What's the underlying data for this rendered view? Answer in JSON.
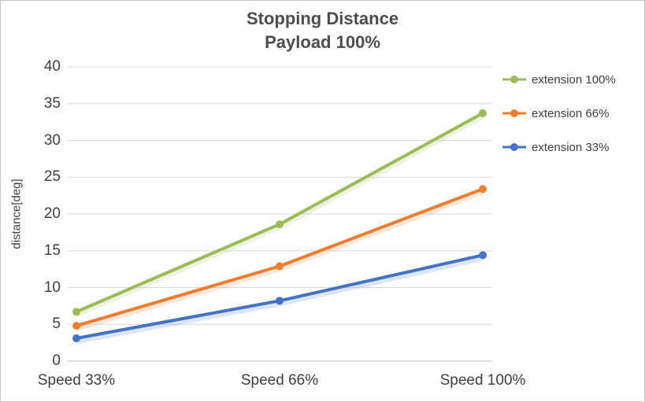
{
  "title": {
    "line1": "Stopping Distance",
    "line2": "Payload 100%"
  },
  "chart_data": {
    "type": "line",
    "categories": [
      "Speed 33%",
      "Speed 66%",
      "Speed 100%"
    ],
    "series": [
      {
        "name": "extension 100%",
        "color": "#9CBB59",
        "values": [
          6.7,
          18.6,
          33.7
        ]
      },
      {
        "name": "extension 66%",
        "color": "#ED7D31",
        "values": [
          4.8,
          12.9,
          23.4
        ]
      },
      {
        "name": "extension 33%",
        "color": "#4472C4",
        "values": [
          3.1,
          8.2,
          14.4
        ]
      }
    ],
    "xlabel": "",
    "ylabel": "distance[deg]",
    "ylim": [
      0,
      40
    ],
    "yticks": [
      0,
      5,
      10,
      15,
      20,
      25,
      30,
      35,
      40
    ],
    "grid": "horizontal",
    "legend_position": "right",
    "colors": {
      "gridline": "#D9D9D9",
      "axis_line": "#BFBFBF",
      "text": "#404040",
      "title_text": "#4d4d4d"
    }
  }
}
